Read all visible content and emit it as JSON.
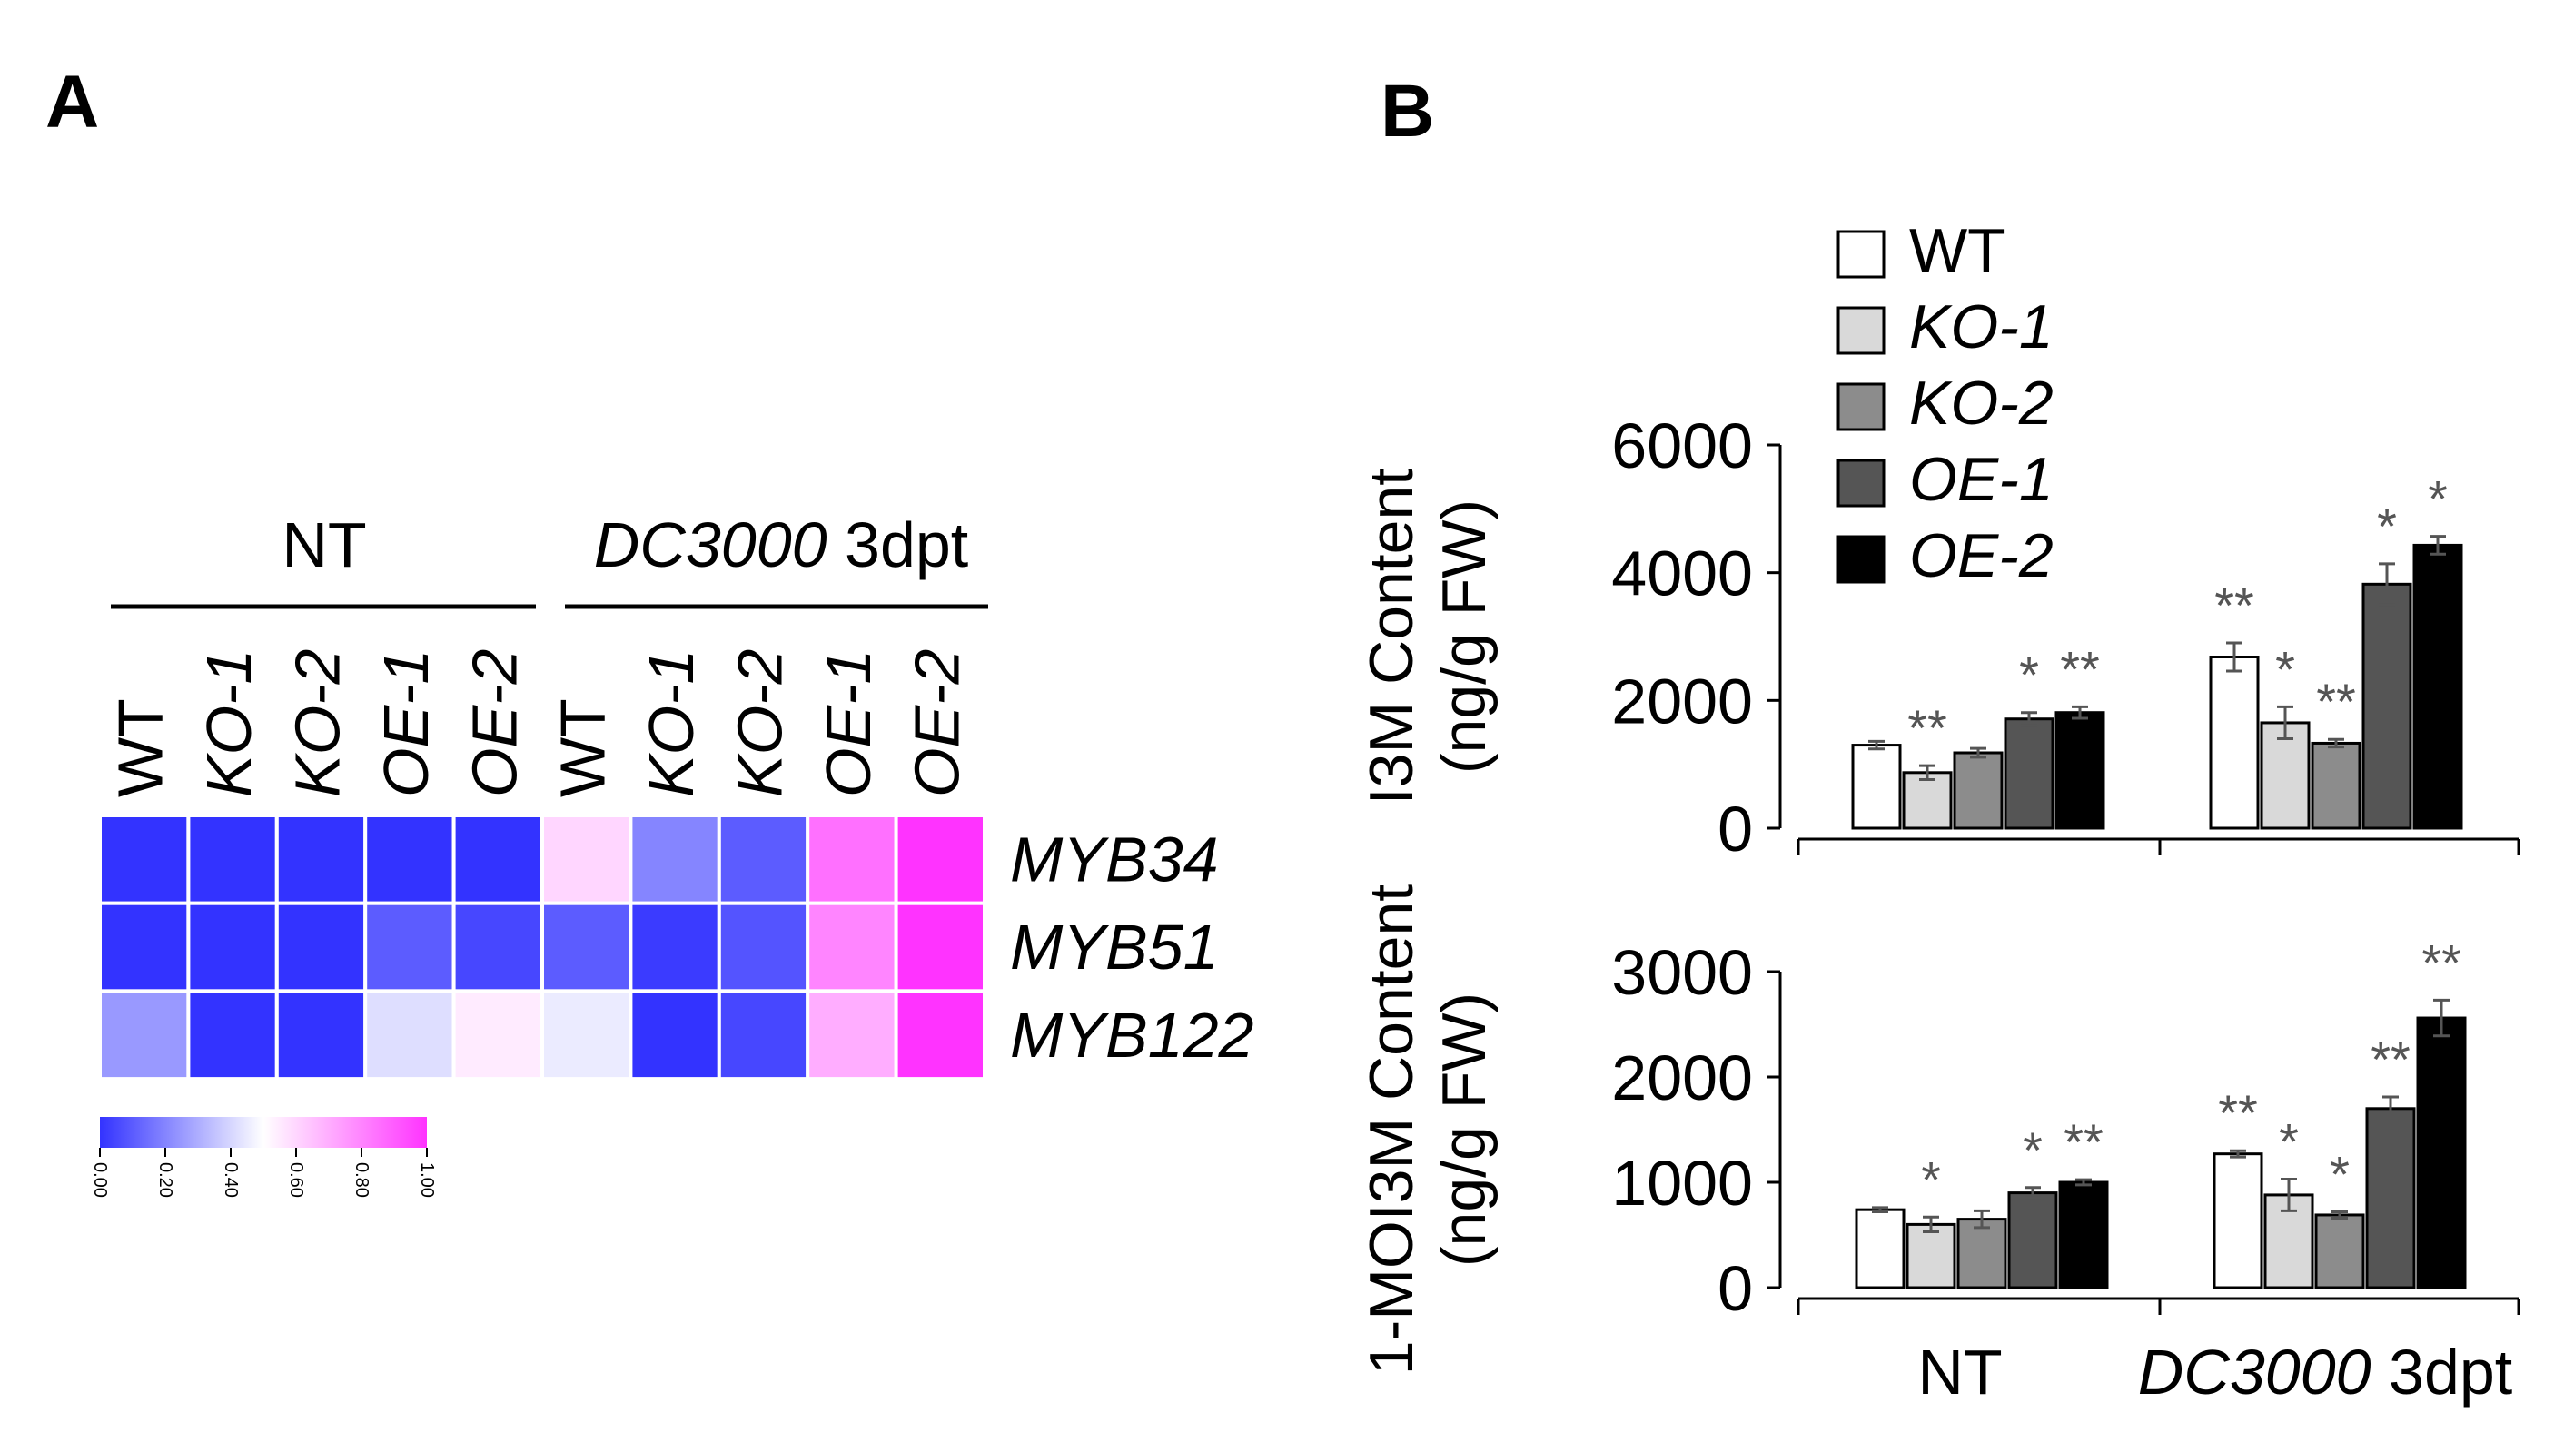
{
  "panels": {
    "a": "A",
    "b": "B"
  },
  "chart_data": [
    {
      "type": "heatmap",
      "panel": "A",
      "groups": [
        {
          "label": "NT",
          "italic": false,
          "columns": [
            0,
            1,
            2,
            3,
            4
          ]
        },
        {
          "label_italic": "DC3000",
          "label_plain": " 3dpt",
          "columns": [
            5,
            6,
            7,
            8,
            9
          ]
        }
      ],
      "columns": [
        {
          "label": "WT",
          "italic": false
        },
        {
          "label": "KO-1",
          "italic": true
        },
        {
          "label": "KO-2",
          "italic": true
        },
        {
          "label": "OE-1",
          "italic": true
        },
        {
          "label": "OE-2",
          "italic": true
        },
        {
          "label": "WT",
          "italic": false
        },
        {
          "label": "KO-1",
          "italic": true
        },
        {
          "label": "KO-2",
          "italic": true
        },
        {
          "label": "OE-1",
          "italic": true
        },
        {
          "label": "OE-2",
          "italic": true
        }
      ],
      "rows": [
        "MYB34",
        "MYB51",
        "MYB122"
      ],
      "values": [
        [
          0.0,
          0.0,
          0.0,
          0.0,
          0.0,
          0.6,
          0.2,
          0.1,
          0.85,
          1.0
        ],
        [
          0.0,
          0.0,
          0.0,
          0.1,
          0.05,
          0.1,
          0.02,
          0.08,
          0.8,
          1.0
        ],
        [
          0.25,
          0.0,
          0.0,
          0.42,
          0.55,
          0.45,
          0.0,
          0.05,
          0.7,
          1.0
        ]
      ],
      "color_scale": {
        "low": "#3333ff",
        "mid": "#ffffff",
        "high": "#ff33ff"
      },
      "colorbar_ticks": [
        "0.00",
        "0.20",
        "0.40",
        "0.60",
        "0.80",
        "1.00"
      ]
    },
    {
      "type": "bar",
      "panel": "B",
      "ylabel_line1": "I3M Content",
      "ylabel_line2": "(ng/g FW)",
      "ylim": [
        0,
        6000
      ],
      "yticks": [
        0,
        2000,
        4000,
        6000
      ],
      "categories": [
        {
          "italic": "",
          "plain": "NT"
        },
        {
          "italic": "DC3000",
          "plain": " 3dpt"
        }
      ],
      "series": [
        {
          "name": "WT",
          "italic": false,
          "color": "#ffffff",
          "values": [
            1300,
            2680
          ],
          "errors": [
            60,
            220
          ],
          "significance": [
            "",
            "**"
          ]
        },
        {
          "name": "KO-1",
          "italic": true,
          "color": "#d9d9d9",
          "values": [
            870,
            1650
          ],
          "errors": [
            110,
            250
          ],
          "significance": [
            "**",
            "*"
          ]
        },
        {
          "name": "KO-2",
          "italic": true,
          "color": "#8c8c8c",
          "values": [
            1180,
            1330
          ],
          "errors": [
            70,
            60
          ],
          "significance": [
            "",
            "**"
          ]
        },
        {
          "name": "OE-1",
          "italic": true,
          "color": "#555555",
          "values": [
            1710,
            3820
          ],
          "errors": [
            100,
            320
          ],
          "significance": [
            "*",
            "*"
          ]
        },
        {
          "name": "OE-2",
          "italic": true,
          "color": "#000000",
          "values": [
            1810,
            4430
          ],
          "errors": [
            90,
            140
          ],
          "significance": [
            "**",
            "*"
          ]
        }
      ]
    },
    {
      "type": "bar",
      "panel": "B",
      "ylabel_line1": "1-MOI3M Content",
      "ylabel_line2": "(ng/g FW)",
      "ylim": [
        0,
        3000
      ],
      "yticks": [
        0,
        1000,
        2000,
        3000
      ],
      "categories": [
        {
          "italic": "",
          "plain": "NT"
        },
        {
          "italic": "DC3000",
          "plain": " 3dpt"
        }
      ],
      "series": [
        {
          "name": "WT",
          "italic": false,
          "color": "#ffffff",
          "values": [
            740,
            1270
          ],
          "errors": [
            20,
            30
          ],
          "significance": [
            "",
            "**"
          ]
        },
        {
          "name": "KO-1",
          "italic": true,
          "color": "#d9d9d9",
          "values": [
            600,
            880
          ],
          "errors": [
            70,
            150
          ],
          "significance": [
            "*",
            "*"
          ]
        },
        {
          "name": "KO-2",
          "italic": true,
          "color": "#8c8c8c",
          "values": [
            650,
            690
          ],
          "errors": [
            80,
            30
          ],
          "significance": [
            "",
            "*"
          ]
        },
        {
          "name": "OE-1",
          "italic": true,
          "color": "#555555",
          "values": [
            900,
            1700
          ],
          "errors": [
            50,
            110
          ],
          "significance": [
            "*",
            "**"
          ]
        },
        {
          "name": "OE-2",
          "italic": true,
          "color": "#000000",
          "values": [
            1000,
            2560
          ],
          "errors": [
            25,
            170
          ],
          "significance": [
            "**",
            "**"
          ]
        }
      ]
    }
  ]
}
